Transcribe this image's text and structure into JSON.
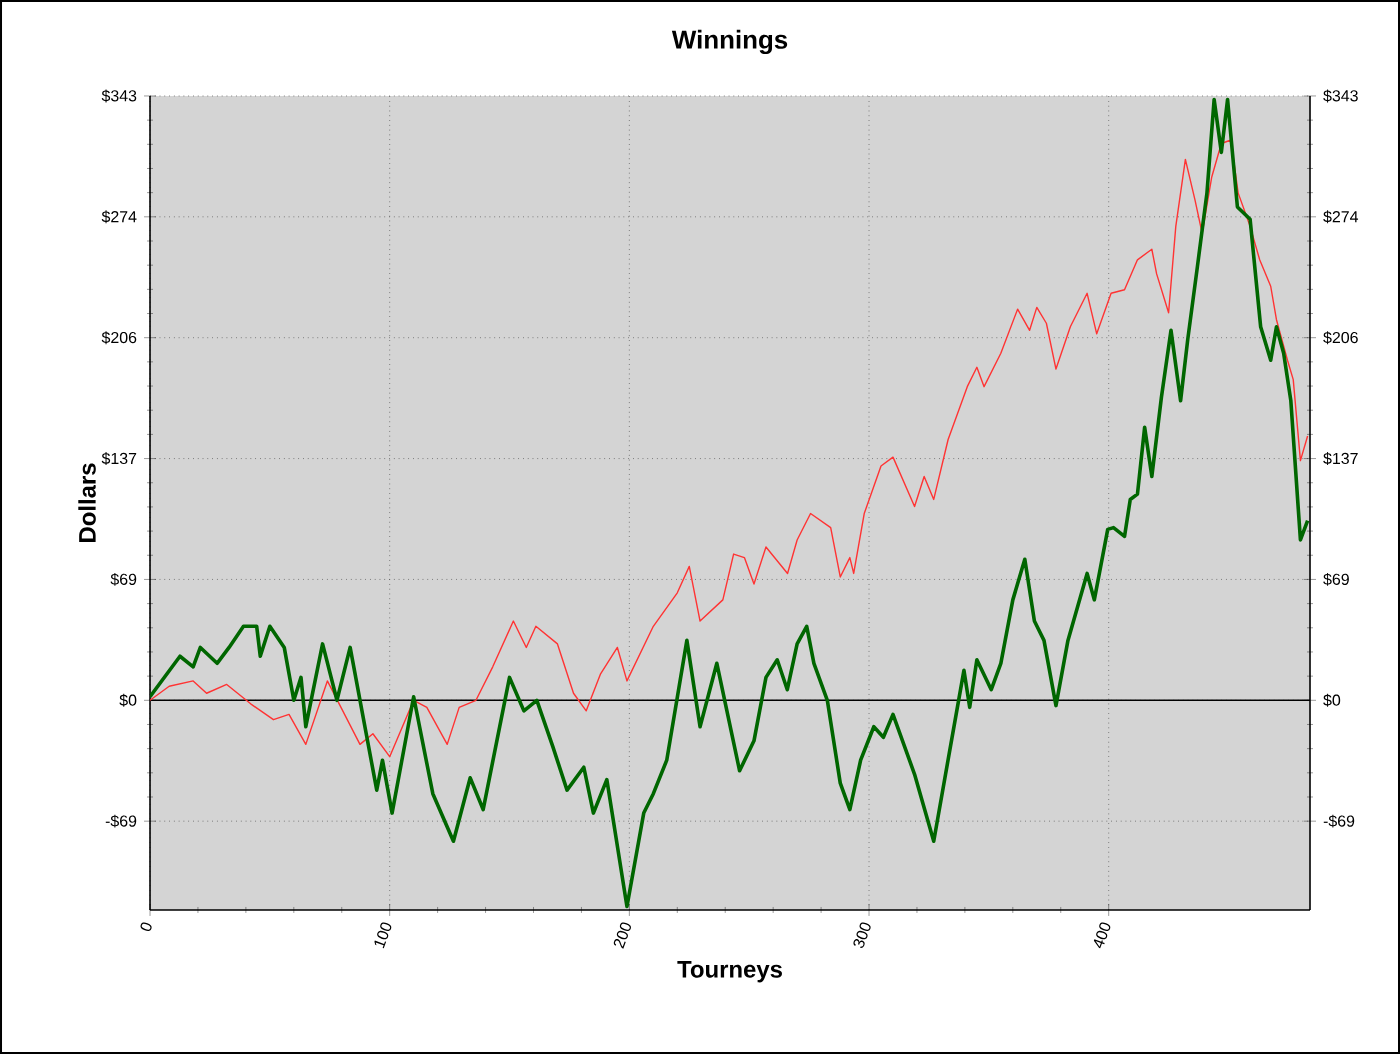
{
  "chart_data": {
    "type": "line",
    "title": "Winnings",
    "xlabel": "Tourneys",
    "ylabel": "Dollars",
    "xlim": [
      0,
      484
    ],
    "xticks": [
      0,
      100,
      200,
      300,
      400
    ],
    "ylim": [
      -119,
      343
    ],
    "yticks": [
      {
        "value": -68.6,
        "label": "-$69"
      },
      {
        "value": 0,
        "label": "$0"
      },
      {
        "value": 68.6,
        "label": "$69"
      },
      {
        "value": 137.2,
        "label": "$137"
      },
      {
        "value": 205.8,
        "label": "$206"
      },
      {
        "value": 274.4,
        "label": "$274"
      },
      {
        "value": 343,
        "label": "$343"
      }
    ],
    "y2lim": [
      -119,
      343
    ],
    "y2ticks": [
      {
        "value": -68.6,
        "label": "-$69"
      },
      {
        "value": 0,
        "label": "$0"
      },
      {
        "value": 68.6,
        "label": "$69"
      },
      {
        "value": 137.2,
        "label": "$137"
      },
      {
        "value": 205.8,
        "label": "$206"
      },
      {
        "value": 274.4,
        "label": "$274"
      },
      {
        "value": 343,
        "label": "$343"
      }
    ],
    "grid": true,
    "marker": "none",
    "line_style": "solid",
    "ref_lines": [
      {
        "axis": "y",
        "value": 0,
        "color": "#000000"
      }
    ],
    "series": [
      {
        "color": "#ff3333",
        "x": [
          0,
          8,
          18,
          23.6,
          32,
          42,
          51.5,
          58,
          65,
          74,
          87.6,
          93,
          100,
          110,
          115.5,
          124,
          129,
          136,
          143,
          151.6,
          157,
          161,
          170,
          176.7,
          182,
          188,
          195,
          199,
          210,
          220,
          225,
          229.5,
          239,
          243.5,
          248,
          252,
          257,
          266,
          270,
          275.6,
          284,
          288,
          292,
          293.6,
          298,
          305,
          310,
          319,
          323,
          327,
          333,
          341,
          345,
          348,
          355,
          362,
          367,
          370,
          374,
          378,
          384,
          391,
          395,
          401,
          406.6,
          412,
          418,
          420,
          425,
          428,
          432,
          436,
          439,
          443,
          447,
          451,
          454,
          459,
          463,
          467.6,
          470,
          474.6,
          477,
          480,
          483
        ],
        "values": [
          0,
          8,
          11,
          4,
          9,
          -2,
          -11,
          -8,
          -25,
          11,
          -25,
          -19,
          -32,
          0,
          -4,
          -25,
          -4,
          0,
          19,
          45,
          30,
          42,
          32,
          4,
          -6,
          15,
          30,
          11,
          42,
          61,
          76,
          45,
          57,
          83,
          81,
          66,
          87,
          72,
          91,
          106,
          98,
          70,
          81,
          72,
          106,
          133,
          138,
          110,
          127,
          114,
          148,
          178,
          189,
          178,
          197,
          222,
          210,
          223,
          214,
          188,
          212,
          231,
          208,
          231,
          233,
          250,
          256,
          242,
          220,
          269,
          307,
          284,
          265,
          297,
          316,
          318,
          288,
          269,
          250,
          235,
          216,
          193,
          182,
          136,
          150
        ]
      },
      {
        "color": "#006600",
        "x": [
          0,
          12.5,
          18,
          21,
          28,
          33,
          39,
          44.5,
          46,
          50,
          56,
          60,
          63,
          65,
          72,
          78,
          83.5,
          94.6,
          97,
          101,
          110,
          118,
          126.6,
          133.6,
          139,
          150,
          156,
          161.4,
          168,
          174,
          181,
          185,
          190.6,
          199,
          206,
          210,
          215.6,
          224,
          229.5,
          236.5,
          246,
          252,
          257,
          261.7,
          265.9,
          270,
          274,
          277,
          282.6,
          288,
          292,
          296.5,
          302,
          306,
          310,
          319,
          327,
          334,
          339.6,
          342,
          345,
          351,
          355,
          360,
          365,
          369,
          373,
          378,
          383,
          387,
          391,
          394,
          399.6,
          402,
          406.6,
          409,
          412,
          415,
          418,
          422,
          426,
          430,
          433,
          437,
          441,
          444,
          447,
          449.6,
          453.7,
          459,
          463.4,
          467.6,
          470,
          473,
          476,
          480,
          483
        ],
        "values": [
          2,
          25,
          19,
          30,
          21,
          30,
          42,
          42,
          25,
          42,
          30,
          0,
          13,
          -15,
          32,
          0,
          30,
          -51,
          -34,
          -64,
          2,
          -53,
          -80,
          -44,
          -62,
          13,
          -6,
          0,
          -26,
          -51,
          -38,
          -64,
          -45,
          -117,
          -64,
          -53,
          -34,
          34,
          -15,
          21,
          -40,
          -23,
          13,
          23,
          6,
          32,
          42,
          21,
          0,
          -47,
          -62,
          -34,
          -15,
          -21,
          -8,
          -42,
          -80,
          -26,
          17,
          -4,
          23,
          6,
          21,
          57,
          80,
          45,
          34,
          -3,
          34,
          53,
          72,
          57,
          97,
          98,
          93,
          114,
          117,
          155,
          127,
          172,
          210,
          170,
          205,
          246,
          288,
          341,
          311,
          341,
          280,
          273,
          212,
          193,
          212,
          197,
          170,
          91,
          102
        ]
      }
    ]
  }
}
